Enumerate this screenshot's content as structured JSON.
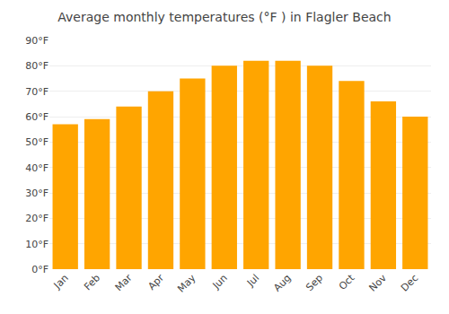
{
  "chart_data": {
    "type": "bar",
    "title": "Average monthly temperatures (°F ) in Flagler Beach",
    "categories": [
      "Jan",
      "Feb",
      "Mar",
      "Apr",
      "May",
      "Jun",
      "Jul",
      "Aug",
      "Sep",
      "Oct",
      "Nov",
      "Dec"
    ],
    "values": [
      57,
      59,
      64,
      70,
      75,
      80,
      82,
      82,
      80,
      74,
      66,
      60
    ],
    "color": "#FFA500",
    "ylim": [
      0,
      90
    ],
    "yticks": [
      {
        "value": 0,
        "label": "0°F"
      },
      {
        "value": 10,
        "label": "10°F"
      },
      {
        "value": 20,
        "label": "20°F"
      },
      {
        "value": 30,
        "label": "30°F"
      },
      {
        "value": 40,
        "label": "40°F"
      },
      {
        "value": 50,
        "label": "50°F"
      },
      {
        "value": 60,
        "label": "60°F"
      },
      {
        "value": 70,
        "label": "70°F"
      },
      {
        "value": 80,
        "label": "80°F"
      },
      {
        "value": 90,
        "label": "90°F"
      }
    ],
    "grid": true
  }
}
